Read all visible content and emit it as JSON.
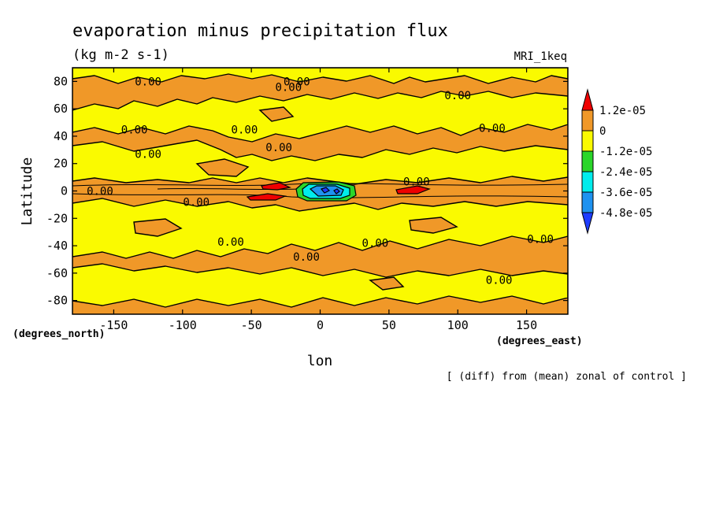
{
  "chart_data": {
    "type": "heatmap",
    "title": "evaporation minus precipitation flux",
    "units": "(kg m-2 s-1)",
    "model": "MRI_1keq",
    "xlabel": "lon",
    "ylabel": "Latitude",
    "x_units": "(degrees_east)",
    "y_units": "(degrees_north)",
    "footnote": "[ (diff) from (mean) zonal of control ]",
    "xlim": [
      -180,
      180
    ],
    "ylim": [
      -90,
      90
    ],
    "x_ticks": [
      -150,
      -100,
      -50,
      0,
      50,
      100,
      150
    ],
    "y_ticks": [
      80,
      60,
      40,
      20,
      0,
      -20,
      -40,
      -60,
      -80
    ],
    "x_tick_labels": [
      "-150",
      "-100",
      "-50",
      "0",
      "50",
      "100",
      "150"
    ],
    "y_tick_labels": [
      "80",
      "60",
      "40",
      "20",
      "0",
      "-20",
      "-40",
      "-60",
      "-80"
    ],
    "contour_label": "0.00",
    "contour_label_positions": [
      [
        -125,
        80
      ],
      [
        -17,
        80
      ],
      [
        -23,
        76
      ],
      [
        100,
        70
      ],
      [
        -135,
        45
      ],
      [
        -55,
        45
      ],
      [
        -30,
        32
      ],
      [
        125,
        46
      ],
      [
        -125,
        27
      ],
      [
        70,
        7
      ],
      [
        -160,
        0
      ],
      [
        -90,
        -8
      ],
      [
        -65,
        -37
      ],
      [
        40,
        -38
      ],
      [
        160,
        -35
      ],
      [
        -10,
        -48
      ],
      [
        130,
        -65
      ]
    ],
    "colorbar": {
      "labels": [
        "1.2e-05",
        "0",
        "-1.2e-05",
        "-2.4e-05",
        "-3.6e-05",
        "-4.8e-05"
      ],
      "colors": [
        "#ef0000",
        "#f09828",
        "#fafa00",
        "#2ad62a",
        "#00ecec",
        "#1e92f0",
        "#1e3cff"
      ]
    },
    "regions": [
      {
        "level": "positive >1.2e-05",
        "color": "#ef0000",
        "lon": [
          -45,
          -25
        ],
        "lat": [
          0,
          4
        ]
      },
      {
        "level": "positive >1.2e-05",
        "color": "#ef0000",
        "lon": [
          -55,
          -30
        ],
        "lat": [
          -8,
          -3
        ]
      },
      {
        "level": "positive >1.2e-05",
        "color": "#ef0000",
        "lon": [
          52,
          78
        ],
        "lat": [
          -3,
          3
        ]
      },
      {
        "level": "negative <-1.2e-05",
        "color": "#2ad62a",
        "lon": [
          -15,
          25
        ],
        "lat": [
          -6,
          6
        ]
      },
      {
        "level": "negative <-2.4e-05",
        "color": "#00ecec",
        "lon": [
          -10,
          22
        ],
        "lat": [
          -5,
          5
        ]
      },
      {
        "level": "negative <-3.6e-05",
        "color": "#1e92f0",
        "lon": [
          -5,
          15
        ],
        "lat": [
          -3,
          3
        ]
      }
    ]
  }
}
